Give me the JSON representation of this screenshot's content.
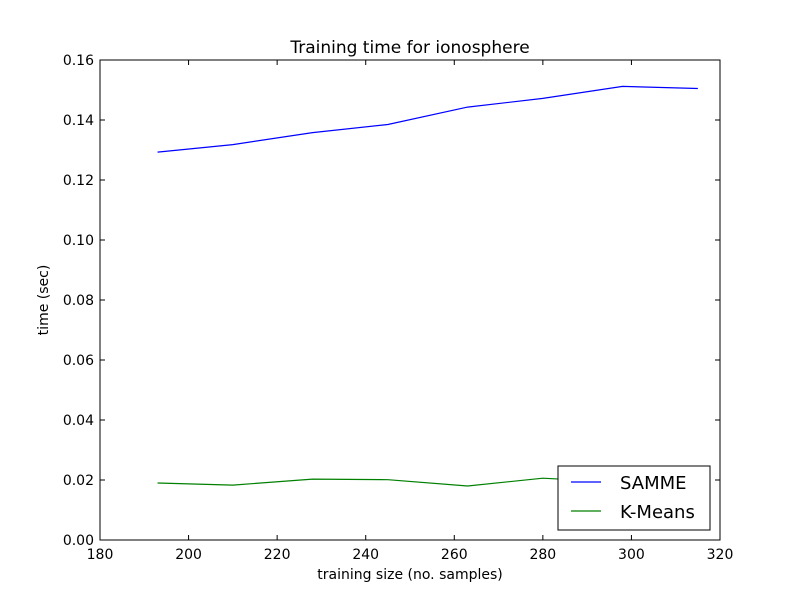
{
  "chart_data": {
    "type": "line",
    "title": "Training time for ionosphere",
    "xlabel": "training size (no. samples)",
    "ylabel": "time (sec)",
    "xlim": [
      180,
      320
    ],
    "ylim": [
      0.0,
      0.16
    ],
    "xticks": [
      180,
      200,
      220,
      240,
      260,
      280,
      300,
      320
    ],
    "yticks": [
      0.0,
      0.02,
      0.04,
      0.06,
      0.08,
      0.1,
      0.12,
      0.14,
      0.16
    ],
    "xtick_labels": [
      "180",
      "200",
      "220",
      "240",
      "260",
      "280",
      "300",
      "320"
    ],
    "ytick_labels": [
      "0.00",
      "0.02",
      "0.04",
      "0.06",
      "0.08",
      "0.10",
      "0.12",
      "0.14",
      "0.16"
    ],
    "grid": false,
    "legend_position": "lower-right",
    "series": [
      {
        "name": "SAMME",
        "color": "#0000ff",
        "x": [
          193,
          210,
          228,
          245,
          263,
          280,
          298,
          315
        ],
        "y": [
          0.1293,
          0.1318,
          0.1358,
          0.1385,
          0.1443,
          0.1472,
          0.1512,
          0.1505
        ]
      },
      {
        "name": "K-Means",
        "color": "#008000",
        "x": [
          193,
          210,
          228,
          245,
          263,
          280,
          298,
          315
        ],
        "y": [
          0.019,
          0.0183,
          0.0203,
          0.0201,
          0.018,
          0.0206,
          0.0192,
          0.0188
        ]
      }
    ]
  }
}
